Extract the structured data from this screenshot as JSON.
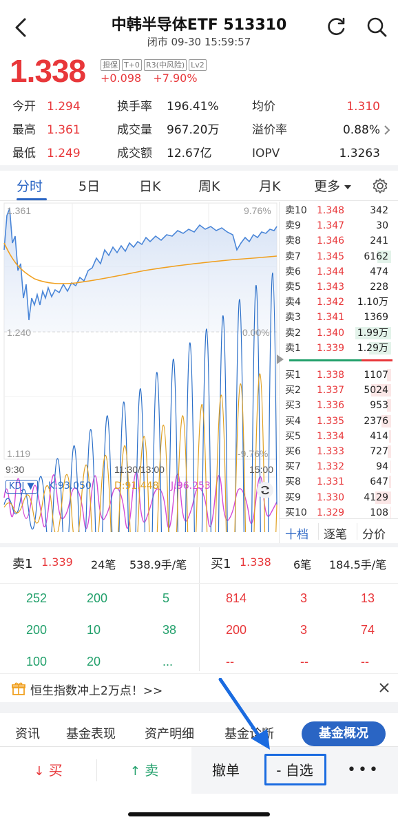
{
  "header": {
    "title": "中韩半导体ETF 513310",
    "subtitle": "闭市 09-30 15:59:57"
  },
  "quote": {
    "price": "1.338",
    "change": "+0.098",
    "change_pct": "+7.90%",
    "tags": [
      "担保",
      "T+0",
      "R3(中风险)",
      "Lv2"
    ]
  },
  "stats": [
    {
      "label": "今开",
      "value": "1.294",
      "color": "red"
    },
    {
      "label": "换手率",
      "value": "196.41%",
      "color": "black"
    },
    {
      "label": "均价",
      "value": "1.310",
      "color": "red"
    },
    {
      "label": "最高",
      "value": "1.361",
      "color": "red"
    },
    {
      "label": "成交量",
      "value": "967.20万",
      "color": "black"
    },
    {
      "label": "溢价率",
      "value": "0.88%",
      "color": "black"
    },
    {
      "label": "最低",
      "value": "1.249",
      "color": "red"
    },
    {
      "label": "成交额",
      "value": "12.67亿",
      "color": "black"
    },
    {
      "label": "IOPV",
      "value": "1.3263",
      "color": "black"
    }
  ],
  "tabs": [
    "分时",
    "5日",
    "日K",
    "周K",
    "月K",
    "更多"
  ],
  "chart": {
    "y_top": "1.361",
    "y_mid": "1.240",
    "y_bot": "1.119",
    "pct_top": "9.76%",
    "pct_mid": "0.00%",
    "pct_bot": "-9.76%",
    "x_start": "9:30",
    "x_mid": "11:30/13:00",
    "x_end": "15:00",
    "kdj_label": "KDJ",
    "k": "K:93.050",
    "d": "D:91.448",
    "j": "J:96.253"
  },
  "orderbook": {
    "asks": [
      {
        "label": "卖10",
        "price": "1.348",
        "vol": "342",
        "bar": 0.0
      },
      {
        "label": "卖9",
        "price": "1.347",
        "vol": "30",
        "bar": 0.0
      },
      {
        "label": "卖8",
        "price": "1.346",
        "vol": "241",
        "bar": 0.0
      },
      {
        "label": "卖7",
        "price": "1.345",
        "vol": "6162",
        "bar": 0.35
      },
      {
        "label": "卖6",
        "price": "1.344",
        "vol": "474",
        "bar": 0.0
      },
      {
        "label": "卖5",
        "price": "1.343",
        "vol": "228",
        "bar": 0.0
      },
      {
        "label": "卖4",
        "price": "1.342",
        "vol": "1.10万",
        "bar": 0.0
      },
      {
        "label": "卖3",
        "price": "1.341",
        "vol": "1369",
        "bar": 0.0
      },
      {
        "label": "卖2",
        "price": "1.340",
        "vol": "1.99万",
        "bar": 0.9
      },
      {
        "label": "卖1",
        "price": "1.339",
        "vol": "1.29万",
        "bar": 0.55
      }
    ],
    "bids": [
      {
        "label": "买1",
        "price": "1.338",
        "vol": "1107"
      },
      {
        "label": "买2",
        "price": "1.337",
        "vol": "5024"
      },
      {
        "label": "买3",
        "price": "1.336",
        "vol": "953"
      },
      {
        "label": "买4",
        "price": "1.335",
        "vol": "2376"
      },
      {
        "label": "买5",
        "price": "1.334",
        "vol": "414"
      },
      {
        "label": "买6",
        "price": "1.333",
        "vol": "727"
      },
      {
        "label": "买7",
        "price": "1.332",
        "vol": "94"
      },
      {
        "label": "买8",
        "price": "1.331",
        "vol": "647"
      },
      {
        "label": "买9",
        "price": "1.330",
        "vol": "4129"
      },
      {
        "label": "买10",
        "price": "1.329",
        "vol": "108"
      }
    ],
    "tabs": [
      "十档",
      "逐笔",
      "分价"
    ]
  },
  "trades": {
    "sell_label": "卖1",
    "sell_price": "1.339",
    "sell_count": "24笔",
    "sell_avg": "538.9手/笔",
    "buy_label": "买1",
    "buy_price": "1.338",
    "buy_count": "6笔",
    "buy_avg": "184.5手/笔",
    "sell_rows": [
      [
        "252",
        "200",
        "5"
      ],
      [
        "200",
        "10",
        "38"
      ],
      [
        "100",
        "20",
        "..."
      ]
    ],
    "buy_rows": [
      [
        "814",
        "3",
        "13"
      ],
      [
        "200",
        "3",
        "74"
      ],
      [
        "--",
        "--",
        "--"
      ]
    ]
  },
  "promo": {
    "text": "恒生指数冲上2万点！>>"
  },
  "bottom_tabs": [
    "资讯",
    "基金表现",
    "资产明细",
    "基金诊断",
    "基金概况"
  ],
  "actions": {
    "buy": "买",
    "sell": "卖",
    "cancel": "撤单",
    "watch": "- 自选",
    "more": "•••"
  },
  "colors": {
    "up": "#e8373a",
    "down": "#22a06b",
    "accent": "#2a65c4",
    "line": "#4a86d8",
    "avg": "#f0a020"
  }
}
